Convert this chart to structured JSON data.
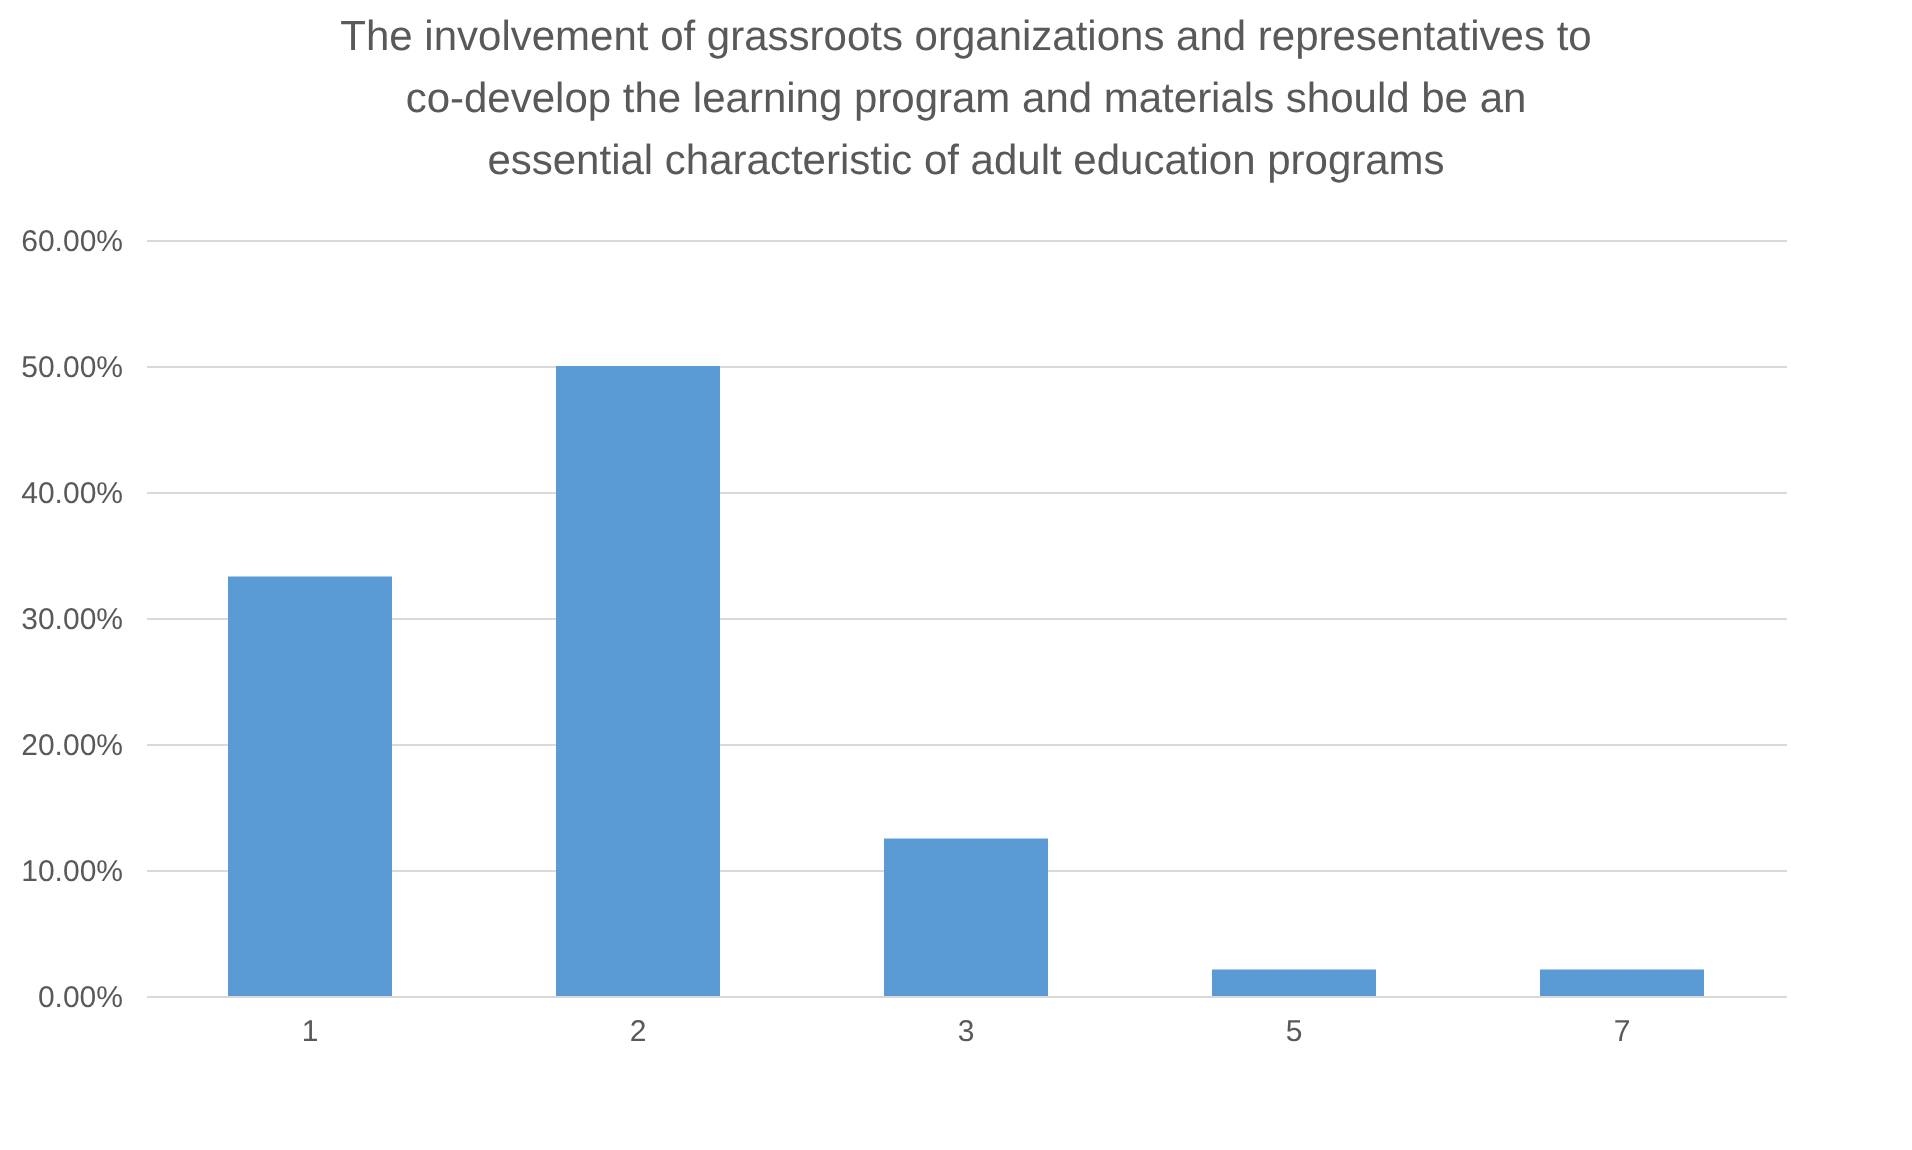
{
  "chart_data": {
    "type": "bar",
    "title": "The involvement of grassroots organizations and representatives to co-develop the learning program and materials should be an essential characteristic of adult education programs",
    "categories": [
      "1",
      "2",
      "3",
      "5",
      "7"
    ],
    "values": [
      33.3,
      50.0,
      12.5,
      2.1,
      2.1
    ],
    "color": "#5b9bd5",
    "ylim": [
      0,
      60
    ],
    "yticks": [
      {
        "value": 0,
        "label": "0.00%"
      },
      {
        "value": 10,
        "label": "10.00%"
      },
      {
        "value": 20,
        "label": "20.00%"
      },
      {
        "value": 30,
        "label": "30.00%"
      },
      {
        "value": 40,
        "label": "40.00%"
      },
      {
        "value": 50,
        "label": "50.00%"
      },
      {
        "value": 60,
        "label": "60.00%"
      }
    ],
    "grid": "y"
  }
}
